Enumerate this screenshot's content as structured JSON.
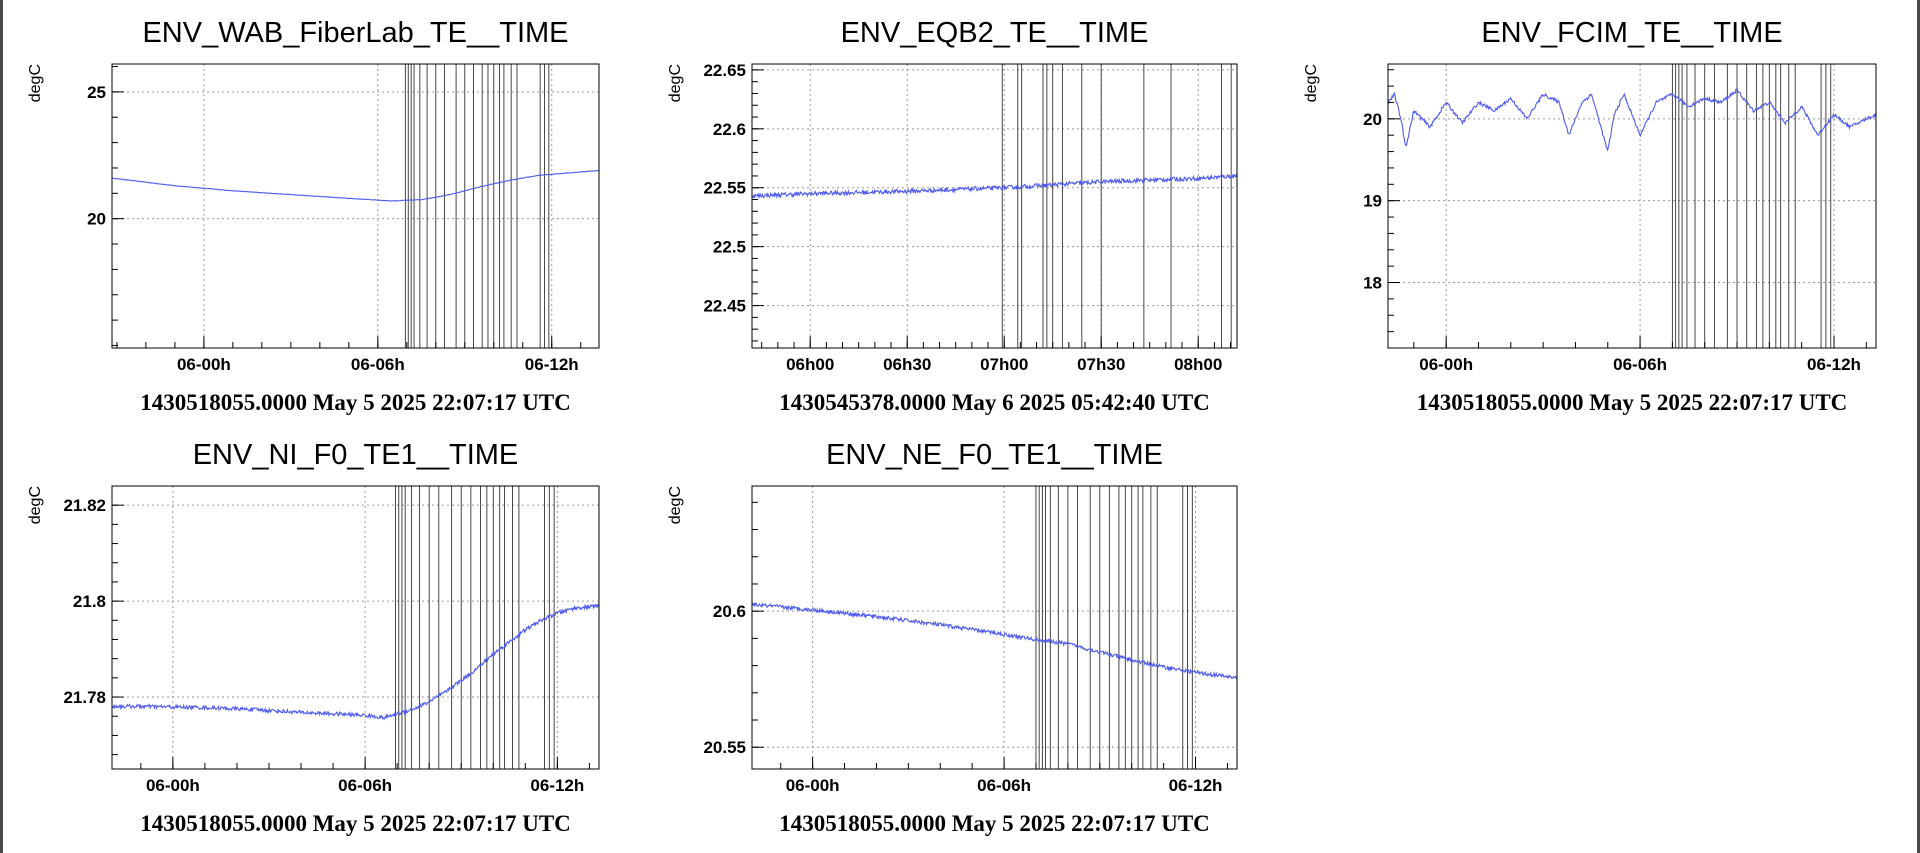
{
  "colors": {
    "series": "#4e5bf0",
    "marker": "#333333",
    "grid": "#9a9a9a",
    "axis": "#000000"
  },
  "chart_data": [
    {
      "type": "line",
      "title": "ENV_WAB_FiberLab_TE__TIME",
      "ylabel": "degC",
      "caption": "1430518055.0000 May 5 2025 22:07:17 UTC",
      "xlim": [
        -3.17,
        13.63
      ],
      "ylim": [
        14.9,
        26.1
      ],
      "xticks": [
        {
          "v": 0,
          "label": "06-00h"
        },
        {
          "v": 6,
          "label": "06-06h"
        },
        {
          "v": 12,
          "label": "06-12h"
        }
      ],
      "yticks": [
        {
          "v": 20,
          "label": "20"
        },
        {
          "v": 25,
          "label": "25"
        }
      ],
      "series": [
        {
          "x": [
            -3.17,
            -1.0,
            1.0,
            3.0,
            5.0,
            6.5,
            7.5,
            8.5,
            9.5,
            10.5,
            11.5,
            12.5,
            13.63
          ],
          "y": [
            21.6,
            21.3,
            21.1,
            20.95,
            20.8,
            20.7,
            20.75,
            20.95,
            21.25,
            21.5,
            21.7,
            21.8,
            21.9
          ],
          "noise": 0.01
        }
      ],
      "markers": [
        6.95,
        7.05,
        7.15,
        7.25,
        7.45,
        7.7,
        8.0,
        8.3,
        8.7,
        9.0,
        9.3,
        9.6,
        9.8,
        10.0,
        10.2,
        10.35,
        10.6,
        10.8,
        11.6,
        11.75,
        11.9
      ]
    },
    {
      "type": "line",
      "title": "ENV_EQB2_TE__TIME",
      "ylabel": "degC",
      "caption": "1430545378.0000 May 6 2025 05:42:40 UTC",
      "xlim": [
        5.7,
        8.2
      ],
      "ylim": [
        22.414,
        22.655
      ],
      "xticks": [
        {
          "v": 6.0,
          "label": "06h00"
        },
        {
          "v": 6.5,
          "label": "06h30"
        },
        {
          "v": 7.0,
          "label": "07h00"
        },
        {
          "v": 7.5,
          "label": "07h30"
        },
        {
          "v": 8.0,
          "label": "08h00"
        }
      ],
      "yticks": [
        {
          "v": 22.45,
          "label": "22.45"
        },
        {
          "v": 22.5,
          "label": "22.5"
        },
        {
          "v": 22.55,
          "label": "22.55"
        },
        {
          "v": 22.6,
          "label": "22.6"
        },
        {
          "v": 22.65,
          "label": "22.65"
        }
      ],
      "series": [
        {
          "x": [
            5.7,
            6.0,
            6.5,
            7.0,
            7.5,
            8.0,
            8.2
          ],
          "y": [
            22.543,
            22.545,
            22.547,
            22.55,
            22.555,
            22.558,
            22.56
          ],
          "noise": 0.0018
        }
      ],
      "markers": [
        6.99,
        7.07,
        7.09,
        7.2,
        7.22,
        7.25,
        7.3,
        7.4,
        7.5,
        7.72,
        7.86,
        8.12,
        8.17
      ]
    },
    {
      "type": "line",
      "title": "ENV_FCIM_TE__TIME",
      "ylabel": "degC",
      "caption": "1430518055.0000 May 5 2025 22:07:17 UTC",
      "xlim": [
        -1.8,
        13.3
      ],
      "ylim": [
        17.2,
        20.67
      ],
      "xticks": [
        {
          "v": 0,
          "label": "06-00h"
        },
        {
          "v": 6,
          "label": "06-06h"
        },
        {
          "v": 12,
          "label": "06-12h"
        }
      ],
      "yticks": [
        {
          "v": 18,
          "label": "18"
        },
        {
          "v": 19,
          "label": "19"
        },
        {
          "v": 20,
          "label": "20"
        }
      ],
      "series": [
        {
          "x": [
            -1.8,
            -1.6,
            -1.4,
            -1.25,
            -1.0,
            -0.5,
            0.0,
            0.5,
            1.0,
            1.5,
            2.0,
            2.5,
            3.0,
            3.5,
            3.8,
            4.2,
            4.5,
            5.0,
            5.2,
            5.5,
            6.0,
            6.5,
            7.0,
            7.5,
            8.0,
            8.5,
            9.0,
            9.5,
            10.0,
            10.5,
            11.0,
            11.5,
            12.0,
            12.5,
            13.0,
            13.3
          ],
          "y": [
            20.2,
            20.3,
            20.0,
            19.65,
            20.1,
            19.9,
            20.2,
            19.95,
            20.2,
            20.1,
            20.25,
            20.0,
            20.3,
            20.2,
            19.8,
            20.2,
            20.3,
            19.6,
            20.05,
            20.3,
            19.8,
            20.2,
            20.3,
            20.15,
            20.25,
            20.2,
            20.35,
            20.1,
            20.2,
            19.95,
            20.15,
            19.8,
            20.05,
            19.9,
            20.0,
            20.05
          ],
          "noise": 0.02
        }
      ],
      "markers": [
        7.0,
        7.1,
        7.2,
        7.3,
        7.45,
        7.7,
        8.0,
        8.3,
        8.7,
        9.0,
        9.3,
        9.6,
        9.8,
        10.0,
        10.2,
        10.35,
        10.6,
        10.8,
        11.6,
        11.75,
        11.9
      ]
    },
    {
      "type": "line",
      "title": "ENV_NI_F0_TE1__TIME",
      "ylabel": "degC",
      "caption": "1430518055.0000 May 5 2025 22:07:17 UTC",
      "xlim": [
        -1.9,
        13.3
      ],
      "ylim": [
        21.765,
        21.824
      ],
      "xticks": [
        {
          "v": 0,
          "label": "06-00h"
        },
        {
          "v": 6,
          "label": "06-06h"
        },
        {
          "v": 12,
          "label": "06-12h"
        }
      ],
      "yticks": [
        {
          "v": 21.78,
          "label": "21.78"
        },
        {
          "v": 21.8,
          "label": "21.8"
        },
        {
          "v": 21.82,
          "label": "21.82"
        }
      ],
      "series": [
        {
          "x": [
            -1.9,
            -0.5,
            1.0,
            2.5,
            4.0,
            5.0,
            6.0,
            6.6,
            7.0,
            7.5,
            8.0,
            8.5,
            9.0,
            9.5,
            10.0,
            10.5,
            11.0,
            11.5,
            12.0,
            12.5,
            13.3
          ],
          "y": [
            21.7781,
            21.778,
            21.7778,
            21.7774,
            21.7768,
            21.7765,
            21.7762,
            21.7757,
            21.7765,
            21.7775,
            21.779,
            21.781,
            21.7835,
            21.786,
            21.789,
            21.7915,
            21.794,
            21.796,
            21.7975,
            21.7985,
            21.799
          ],
          "noise": 0.0004
        }
      ],
      "markers": [
        6.95,
        7.05,
        7.15,
        7.25,
        7.45,
        7.7,
        8.0,
        8.3,
        8.7,
        9.0,
        9.3,
        9.6,
        9.8,
        10.0,
        10.2,
        10.35,
        10.6,
        10.8,
        11.6,
        11.75,
        11.9
      ]
    },
    {
      "type": "line",
      "title": "ENV_NE_F0_TE1__TIME",
      "ylabel": "degC",
      "caption": "1430518055.0000 May 5 2025 22:07:17 UTC",
      "xlim": [
        -1.9,
        13.3
      ],
      "ylim": [
        20.542,
        20.646
      ],
      "xticks": [
        {
          "v": 0,
          "label": "06-00h"
        },
        {
          "v": 6,
          "label": "06-06h"
        },
        {
          "v": 12,
          "label": "06-12h"
        }
      ],
      "yticks": [
        {
          "v": 20.55,
          "label": "20.55"
        },
        {
          "v": 20.6,
          "label": "20.6"
        }
      ],
      "series": [
        {
          "x": [
            -1.9,
            0.0,
            2.0,
            4.0,
            6.0,
            7.0,
            8.0,
            9.0,
            10.0,
            11.0,
            12.0,
            13.3
          ],
          "y": [
            20.6025,
            20.6005,
            20.598,
            20.595,
            20.5915,
            20.5895,
            20.588,
            20.585,
            20.582,
            20.5795,
            20.5775,
            20.5755
          ],
          "noise": 0.0007
        }
      ],
      "markers": [
        7.0,
        7.1,
        7.2,
        7.3,
        7.45,
        7.7,
        8.0,
        8.3,
        8.7,
        9.0,
        9.3,
        9.6,
        9.8,
        10.0,
        10.2,
        10.35,
        10.6,
        10.8,
        11.6,
        11.75,
        11.9
      ]
    }
  ]
}
